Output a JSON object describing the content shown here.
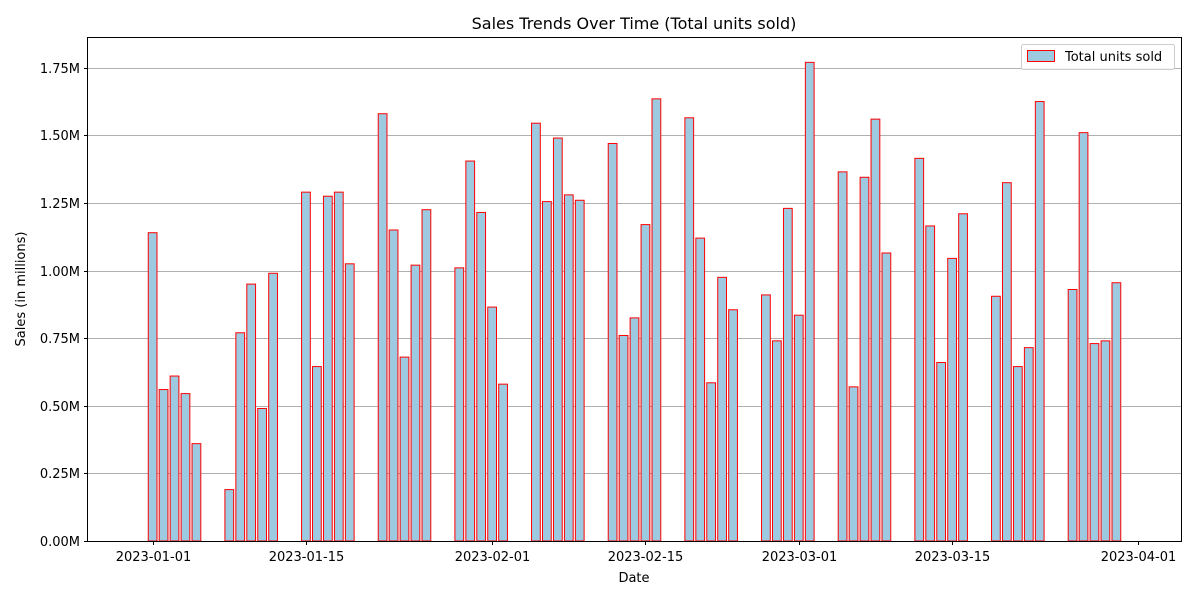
{
  "chart_data": {
    "type": "bar",
    "title": "Sales Trends Over Time (Total units sold)",
    "xlabel": "Date",
    "ylabel": "Sales (in millions)",
    "ylim": [
      0,
      1.86
    ],
    "y_unit": "M",
    "grid": "y",
    "legend_position": "top-right",
    "x_tick_labels": [
      "2023-01-01",
      "2023-01-15",
      "2023-02-01",
      "2023-02-15",
      "2023-03-01",
      "2023-03-15",
      "2023-04-01"
    ],
    "y_tick_labels": [
      "0.00M",
      "0.25M",
      "0.50M",
      "0.75M",
      "1.00M",
      "1.25M",
      "1.50M",
      "1.75M"
    ],
    "y_ticks": [
      0,
      0.25,
      0.5,
      0.75,
      1.0,
      1.25,
      1.5,
      1.75
    ],
    "colors": {
      "bar_fill": "#9ecae1",
      "bar_edge": "#ff0000",
      "grid": "#b0b0b0"
    },
    "series": [
      {
        "name": "Total units sold",
        "x": [
          "2023-01-01",
          "2023-01-02",
          "2023-01-03",
          "2023-01-04",
          "2023-01-05",
          "2023-01-08",
          "2023-01-09",
          "2023-01-10",
          "2023-01-11",
          "2023-01-12",
          "2023-01-15",
          "2023-01-16",
          "2023-01-17",
          "2023-01-18",
          "2023-01-19",
          "2023-01-22",
          "2023-01-23",
          "2023-01-24",
          "2023-01-25",
          "2023-01-26",
          "2023-01-29",
          "2023-01-30",
          "2023-01-31",
          "2023-02-01",
          "2023-02-02",
          "2023-02-05",
          "2023-02-06",
          "2023-02-07",
          "2023-02-08",
          "2023-02-09",
          "2023-02-12",
          "2023-02-13",
          "2023-02-14",
          "2023-02-15",
          "2023-02-16",
          "2023-02-19",
          "2023-02-20",
          "2023-02-21",
          "2023-02-22",
          "2023-02-23",
          "2023-02-26",
          "2023-02-27",
          "2023-02-28",
          "2023-03-01",
          "2023-03-02",
          "2023-03-05",
          "2023-03-06",
          "2023-03-07",
          "2023-03-08",
          "2023-03-09",
          "2023-03-12",
          "2023-03-13",
          "2023-03-14",
          "2023-03-15",
          "2023-03-16",
          "2023-03-19",
          "2023-03-20",
          "2023-03-21",
          "2023-03-22",
          "2023-03-23",
          "2023-03-26",
          "2023-03-27",
          "2023-03-28",
          "2023-03-29",
          "2023-03-30"
        ],
        "values": [
          1.14,
          0.56,
          0.61,
          0.545,
          0.36,
          0.19,
          0.77,
          0.95,
          0.49,
          0.99,
          1.29,
          0.645,
          1.275,
          1.29,
          1.025,
          1.58,
          1.15,
          0.68,
          1.02,
          1.225,
          1.01,
          1.405,
          1.215,
          0.865,
          0.58,
          1.545,
          1.255,
          1.49,
          1.28,
          1.26,
          1.47,
          0.76,
          0.825,
          1.17,
          1.635,
          1.565,
          1.12,
          0.585,
          0.975,
          0.855,
          0.91,
          0.74,
          1.23,
          0.835,
          1.77,
          1.365,
          0.57,
          1.345,
          1.56,
          1.065,
          1.415,
          1.165,
          0.66,
          1.045,
          1.21,
          0.905,
          1.325,
          0.645,
          0.715,
          1.625,
          0.93,
          1.51,
          0.73,
          0.74,
          0.955
        ]
      }
    ]
  }
}
